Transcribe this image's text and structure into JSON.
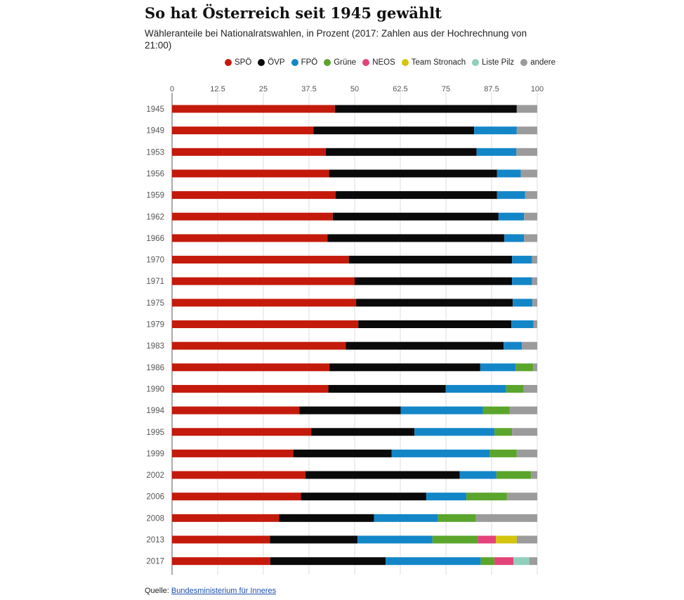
{
  "title": "So hat Österreich seit 1945 gewählt",
  "subtitle": "Wähleranteile bei Nationalratswahlen, in Prozent (2017: Zahlen aus der Hochrechnung von 21:00)",
  "source": {
    "label": "Quelle:",
    "link_text": "Bundesministerium für Inneres"
  },
  "chart_data": {
    "type": "bar",
    "orientation": "horizontal",
    "stacked": true,
    "xlim": [
      0,
      100
    ],
    "xticks": [
      0,
      12.5,
      25,
      37.5,
      50,
      62.5,
      75,
      87.5,
      100
    ],
    "xtick_labels": [
      "0",
      "12.5",
      "25",
      "37.5",
      "50",
      "62.5",
      "75",
      "87.5",
      "100"
    ],
    "xaxis_position": "top",
    "grid": true,
    "legend_position": "top-right",
    "categories": [
      "1945",
      "1949",
      "1953",
      "1956",
      "1959",
      "1962",
      "1966",
      "1970",
      "1971",
      "1975",
      "1979",
      "1983",
      "1986",
      "1990",
      "1994",
      "1995",
      "1999",
      "2002",
      "2006",
      "2008",
      "2013",
      "2017"
    ],
    "series": [
      {
        "name": "SPÖ",
        "color": "#c41a0c",
        "values": [
          44.6,
          38.7,
          42.1,
          43.0,
          44.8,
          44.0,
          42.6,
          48.4,
          50.0,
          50.4,
          51.0,
          47.6,
          43.1,
          42.8,
          34.9,
          38.1,
          33.2,
          36.5,
          35.3,
          29.3,
          26.8,
          26.9
        ]
      },
      {
        "name": "ÖVP",
        "color": "#0a0a0a",
        "values": [
          49.8,
          44.0,
          41.3,
          46.0,
          44.2,
          45.4,
          48.4,
          44.7,
          43.1,
          42.9,
          41.9,
          43.2,
          41.3,
          32.1,
          27.7,
          28.3,
          26.9,
          42.3,
          34.3,
          26.0,
          24.0,
          31.6
        ]
      },
      {
        "name": "FPÖ",
        "color": "#1386c8",
        "values": [
          0,
          11.7,
          10.9,
          6.5,
          7.7,
          7.0,
          5.4,
          5.5,
          5.5,
          5.4,
          6.1,
          5.0,
          9.7,
          16.6,
          22.5,
          21.9,
          26.9,
          10.0,
          11.0,
          17.5,
          20.5,
          26.0
        ]
      },
      {
        "name": "Grüne",
        "color": "#5ba52c",
        "values": [
          0,
          0,
          0,
          0,
          0,
          0,
          0,
          0,
          0,
          0,
          0,
          0,
          4.8,
          4.8,
          7.3,
          4.8,
          7.4,
          9.5,
          11.1,
          10.4,
          12.4,
          3.8
        ]
      },
      {
        "name": "NEOS",
        "color": "#e3437a",
        "values": [
          0,
          0,
          0,
          0,
          0,
          0,
          0,
          0,
          0,
          0,
          0,
          0,
          0,
          0,
          0,
          0,
          0,
          0,
          0,
          0,
          5.0,
          5.2
        ]
      },
      {
        "name": "Team Stronach",
        "color": "#d4c40c",
        "values": [
          0,
          0,
          0,
          0,
          0,
          0,
          0,
          0,
          0,
          0,
          0,
          0,
          0,
          0,
          0,
          0,
          0,
          0,
          0,
          0,
          5.7,
          0
        ]
      },
      {
        "name": "Liste Pilz",
        "color": "#8fd0bc",
        "values": [
          0,
          0,
          0,
          0,
          0,
          0,
          0,
          0,
          0,
          0,
          0,
          0,
          0,
          0,
          0,
          0,
          0,
          0,
          0,
          0,
          0,
          4.3
        ]
      },
      {
        "name": "andere",
        "color": "#9b9b9b",
        "values": [
          5.6,
          5.6,
          5.7,
          4.5,
          3.3,
          3.6,
          3.6,
          1.4,
          1.4,
          1.3,
          1.0,
          4.2,
          1.1,
          3.7,
          7.6,
          6.9,
          5.6,
          1.7,
          8.3,
          16.8,
          5.6,
          2.2
        ]
      }
    ]
  }
}
